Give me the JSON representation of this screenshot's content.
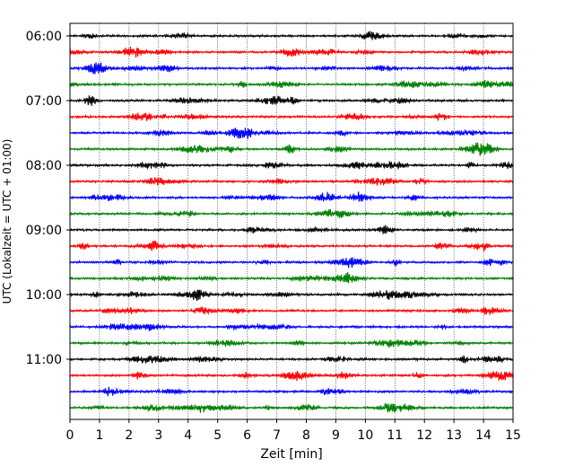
{
  "chart_data": {
    "type": "line",
    "title": "",
    "xlabel": "Zeit  [min]",
    "ylabel": "UTC (Lokalzeit = UTC + 01:00)",
    "xlim": [
      0,
      15
    ],
    "x_ticks": [
      0,
      1,
      2,
      3,
      4,
      5,
      6,
      7,
      8,
      9,
      10,
      11,
      12,
      13,
      14,
      15
    ],
    "y_tick_labels": [
      "06:00",
      "07:00",
      "08:00",
      "09:00",
      "10:00",
      "11:00"
    ],
    "y_tick_rows": [
      0,
      4,
      8,
      12,
      16,
      20
    ],
    "start_time": "06:00",
    "row_interval_minutes": 15,
    "row_duration_minutes": 15,
    "trace_colors": [
      "#000000",
      "#ff0000",
      "#0000ff",
      "#008000"
    ],
    "grid": true,
    "legend": "none",
    "rows": [
      {
        "start": "06:00",
        "color": "#000000"
      },
      {
        "start": "06:15",
        "color": "#ff0000"
      },
      {
        "start": "06:30",
        "color": "#0000ff"
      },
      {
        "start": "06:45",
        "color": "#008000"
      },
      {
        "start": "07:00",
        "color": "#000000"
      },
      {
        "start": "07:15",
        "color": "#ff0000"
      },
      {
        "start": "07:30",
        "color": "#0000ff"
      },
      {
        "start": "07:45",
        "color": "#008000"
      },
      {
        "start": "08:00",
        "color": "#000000"
      },
      {
        "start": "08:15",
        "color": "#ff0000"
      },
      {
        "start": "08:30",
        "color": "#0000ff"
      },
      {
        "start": "08:45",
        "color": "#008000"
      },
      {
        "start": "09:00",
        "color": "#000000"
      },
      {
        "start": "09:15",
        "color": "#ff0000"
      },
      {
        "start": "09:30",
        "color": "#0000ff"
      },
      {
        "start": "09:45",
        "color": "#008000"
      },
      {
        "start": "10:00",
        "color": "#000000"
      },
      {
        "start": "10:15",
        "color": "#ff0000"
      },
      {
        "start": "10:30",
        "color": "#0000ff"
      },
      {
        "start": "10:45",
        "color": "#008000"
      },
      {
        "start": "11:00",
        "color": "#000000"
      },
      {
        "start": "11:15",
        "color": "#ff0000"
      },
      {
        "start": "11:30",
        "color": "#0000ff"
      },
      {
        "start": "11:45",
        "color": "#008000"
      }
    ]
  }
}
